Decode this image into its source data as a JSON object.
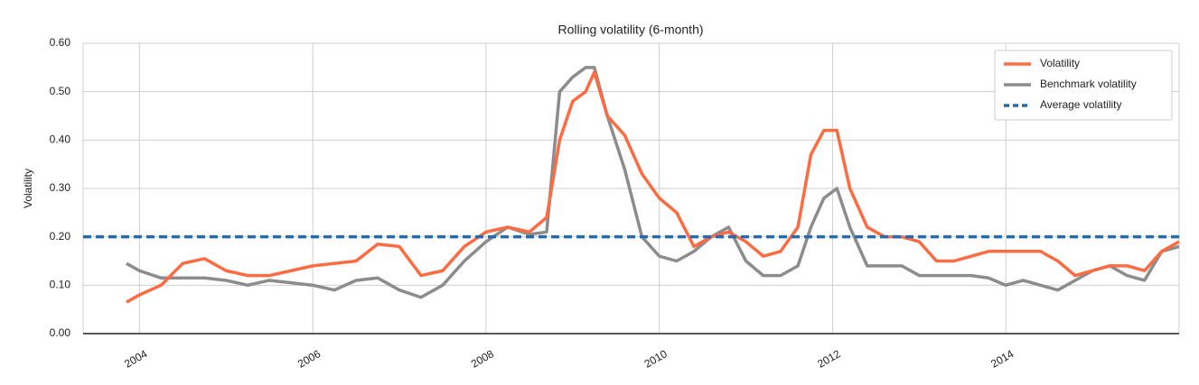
{
  "chart_data": {
    "type": "line",
    "title": "Rolling volatility (6-month)",
    "ylabel": "Volatility",
    "x": [
      2003.85,
      2004,
      2004.25,
      2004.5,
      2004.75,
      2005,
      2005.25,
      2005.5,
      2005.75,
      2006,
      2006.25,
      2006.5,
      2006.75,
      2007,
      2007.25,
      2007.5,
      2007.75,
      2008,
      2008.25,
      2008.5,
      2008.7,
      2008.85,
      2009,
      2009.15,
      2009.25,
      2009.4,
      2009.6,
      2009.8,
      2010,
      2010.2,
      2010.4,
      2010.6,
      2010.8,
      2011,
      2011.2,
      2011.4,
      2011.6,
      2011.75,
      2011.9,
      2012.05,
      2012.2,
      2012.4,
      2012.6,
      2012.8,
      2013,
      2013.2,
      2013.4,
      2013.6,
      2013.8,
      2014,
      2014.2,
      2014.4,
      2014.6,
      2014.8,
      2015,
      2015.2,
      2015.4,
      2015.6,
      2015.8,
      2016
    ],
    "series": [
      {
        "name": "Benchmark volatility",
        "color": "#8c8c8c",
        "values": [
          0.145,
          0.13,
          0.115,
          0.115,
          0.115,
          0.11,
          0.1,
          0.11,
          0.105,
          0.1,
          0.09,
          0.11,
          0.115,
          0.09,
          0.075,
          0.1,
          0.15,
          0.19,
          0.22,
          0.205,
          0.21,
          0.5,
          0.53,
          0.55,
          0.55,
          0.45,
          0.34,
          0.2,
          0.16,
          0.15,
          0.17,
          0.2,
          0.22,
          0.15,
          0.12,
          0.12,
          0.14,
          0.22,
          0.28,
          0.3,
          0.22,
          0.14,
          0.14,
          0.14,
          0.12,
          0.12,
          0.12,
          0.12,
          0.115,
          0.1,
          0.11,
          0.1,
          0.09,
          0.11,
          0.13,
          0.14,
          0.12,
          0.11,
          0.17,
          0.18
        ]
      },
      {
        "name": "Volatility",
        "color": "#fd6b42",
        "values": [
          0.065,
          0.08,
          0.1,
          0.145,
          0.155,
          0.13,
          0.12,
          0.12,
          0.13,
          0.14,
          0.145,
          0.15,
          0.185,
          0.18,
          0.12,
          0.13,
          0.18,
          0.21,
          0.22,
          0.21,
          0.24,
          0.4,
          0.48,
          0.5,
          0.54,
          0.45,
          0.41,
          0.33,
          0.28,
          0.25,
          0.18,
          0.2,
          0.21,
          0.19,
          0.16,
          0.17,
          0.22,
          0.37,
          0.42,
          0.42,
          0.3,
          0.22,
          0.2,
          0.2,
          0.19,
          0.15,
          0.15,
          0.16,
          0.17,
          0.17,
          0.17,
          0.17,
          0.15,
          0.12,
          0.13,
          0.14,
          0.14,
          0.13,
          0.17,
          0.19
        ]
      }
    ],
    "average": {
      "name": "Average volatility",
      "color": "#2b6aa6",
      "value": 0.2
    },
    "legend_order": [
      1,
      0
    ],
    "xlim": [
      2003.35,
      2016.0
    ],
    "xticks": [
      2004,
      2006,
      2008,
      2010,
      2012,
      2014
    ],
    "ylim": [
      0,
      0.6
    ],
    "yticks": [
      {
        "value": 0,
        "label": "0.00"
      },
      {
        "value": 0.1,
        "label": "0.10"
      },
      {
        "value": 0.2,
        "label": "0.20"
      },
      {
        "value": 0.3,
        "label": "0.30"
      },
      {
        "value": 0.4,
        "label": "0.40"
      },
      {
        "value": 0.5,
        "label": "0.50"
      },
      {
        "value": 0.6,
        "label": "0.60"
      }
    ],
    "grid": true,
    "legend": "upper right"
  }
}
